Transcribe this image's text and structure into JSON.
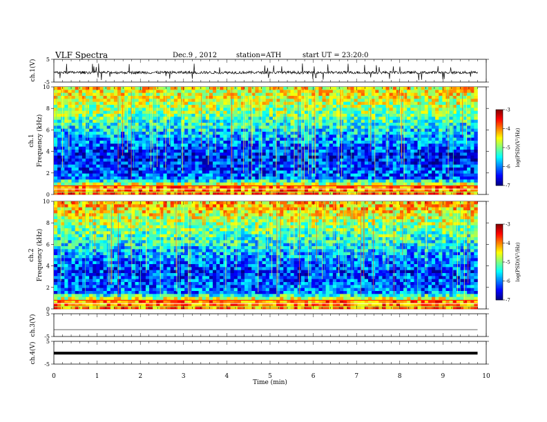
{
  "header": {
    "title": "VLF Spectra",
    "date": "Dec.9 , 2012",
    "station": "station=ATH",
    "start": "start UT = 23:20:0"
  },
  "colors": {
    "jet": [
      "#00007f",
      "#0000ff",
      "#007fff",
      "#00ffff",
      "#7fff7f",
      "#ffff00",
      "#ff7f00",
      "#ff0000",
      "#7f0000"
    ],
    "spectrogram_bg": "#1f8fcf",
    "trace": "#000000"
  },
  "colorbar": {
    "label": "log(PSD)(V²/Hz)",
    "ticks": [
      "-3",
      "-4",
      "-5",
      "-6",
      "-7"
    ],
    "range": [
      -7,
      -3
    ]
  },
  "chart_data": [
    {
      "type": "line",
      "name": "ch1-waveform",
      "ylabel": "ch.1(V)",
      "yticks": [
        "5",
        "-5"
      ],
      "ylim": [
        -5,
        5
      ],
      "x_range": [
        0,
        9.8
      ],
      "baseline_v": -0.8,
      "description_level": "noisy trace around -1 V with sparse spikes up to about +3 V and down to -4 V"
    },
    {
      "type": "heatmap",
      "name": "ch1-spectrogram",
      "ylabel": "ch.1\nFrequency (kHz)",
      "yticks": [
        "10",
        "8",
        "6",
        "4",
        "2",
        "0"
      ],
      "ylim": [
        0,
        10
      ],
      "x_range": [
        0,
        9.8
      ],
      "z_label": "log(PSD)(V²/Hz)",
      "z_range": [
        -7,
        -3
      ],
      "profile": [
        {
          "f_khz": 9.5,
          "log_psd": -4.5
        },
        {
          "f_khz": 7.5,
          "log_psd": -5.0
        },
        {
          "f_khz": 5.5,
          "log_psd": -5.8
        },
        {
          "f_khz": 3.5,
          "log_psd": -6.4
        },
        {
          "f_khz": 1.5,
          "log_psd": -6.1
        },
        {
          "f_khz": 0.7,
          "log_psd": -4.0
        }
      ]
    },
    {
      "type": "heatmap",
      "name": "ch2-spectrogram",
      "ylabel": "ch.2\nFrequency (kHz)",
      "yticks": [
        "10",
        "8",
        "6",
        "4",
        "2",
        "0"
      ],
      "ylim": [
        0,
        10
      ],
      "x_range": [
        0,
        9.8
      ],
      "z_label": "log(PSD)(V²/Hz)",
      "z_range": [
        -7,
        -3
      ],
      "profile": [
        {
          "f_khz": 9.5,
          "log_psd": -4.3
        },
        {
          "f_khz": 7.5,
          "log_psd": -5.0
        },
        {
          "f_khz": 5.5,
          "log_psd": -5.7
        },
        {
          "f_khz": 3.5,
          "log_psd": -6.3
        },
        {
          "f_khz": 1.5,
          "log_psd": -6.0
        },
        {
          "f_khz": 0.7,
          "log_psd": -4.0
        }
      ]
    },
    {
      "type": "line",
      "name": "ch3-waveform",
      "ylabel": "ch.3(V)",
      "yticks": [
        "5",
        "-5"
      ],
      "ylim": [
        -5,
        5
      ],
      "x_range": [
        0,
        9.8
      ],
      "baseline_v": -2.0
    },
    {
      "type": "line",
      "name": "ch4-waveform",
      "ylabel": "ch.4(V)",
      "yticks": [
        "5",
        "-5"
      ],
      "ylim": [
        -5,
        5
      ],
      "x_range": [
        0,
        9.8
      ],
      "baseline_v": -0.2
    }
  ],
  "xaxis": {
    "label": "Time (min)",
    "ticks": [
      "0",
      "1",
      "2",
      "3",
      "4",
      "5",
      "6",
      "7",
      "8",
      "9",
      "10"
    ],
    "range": [
      0,
      10
    ]
  }
}
